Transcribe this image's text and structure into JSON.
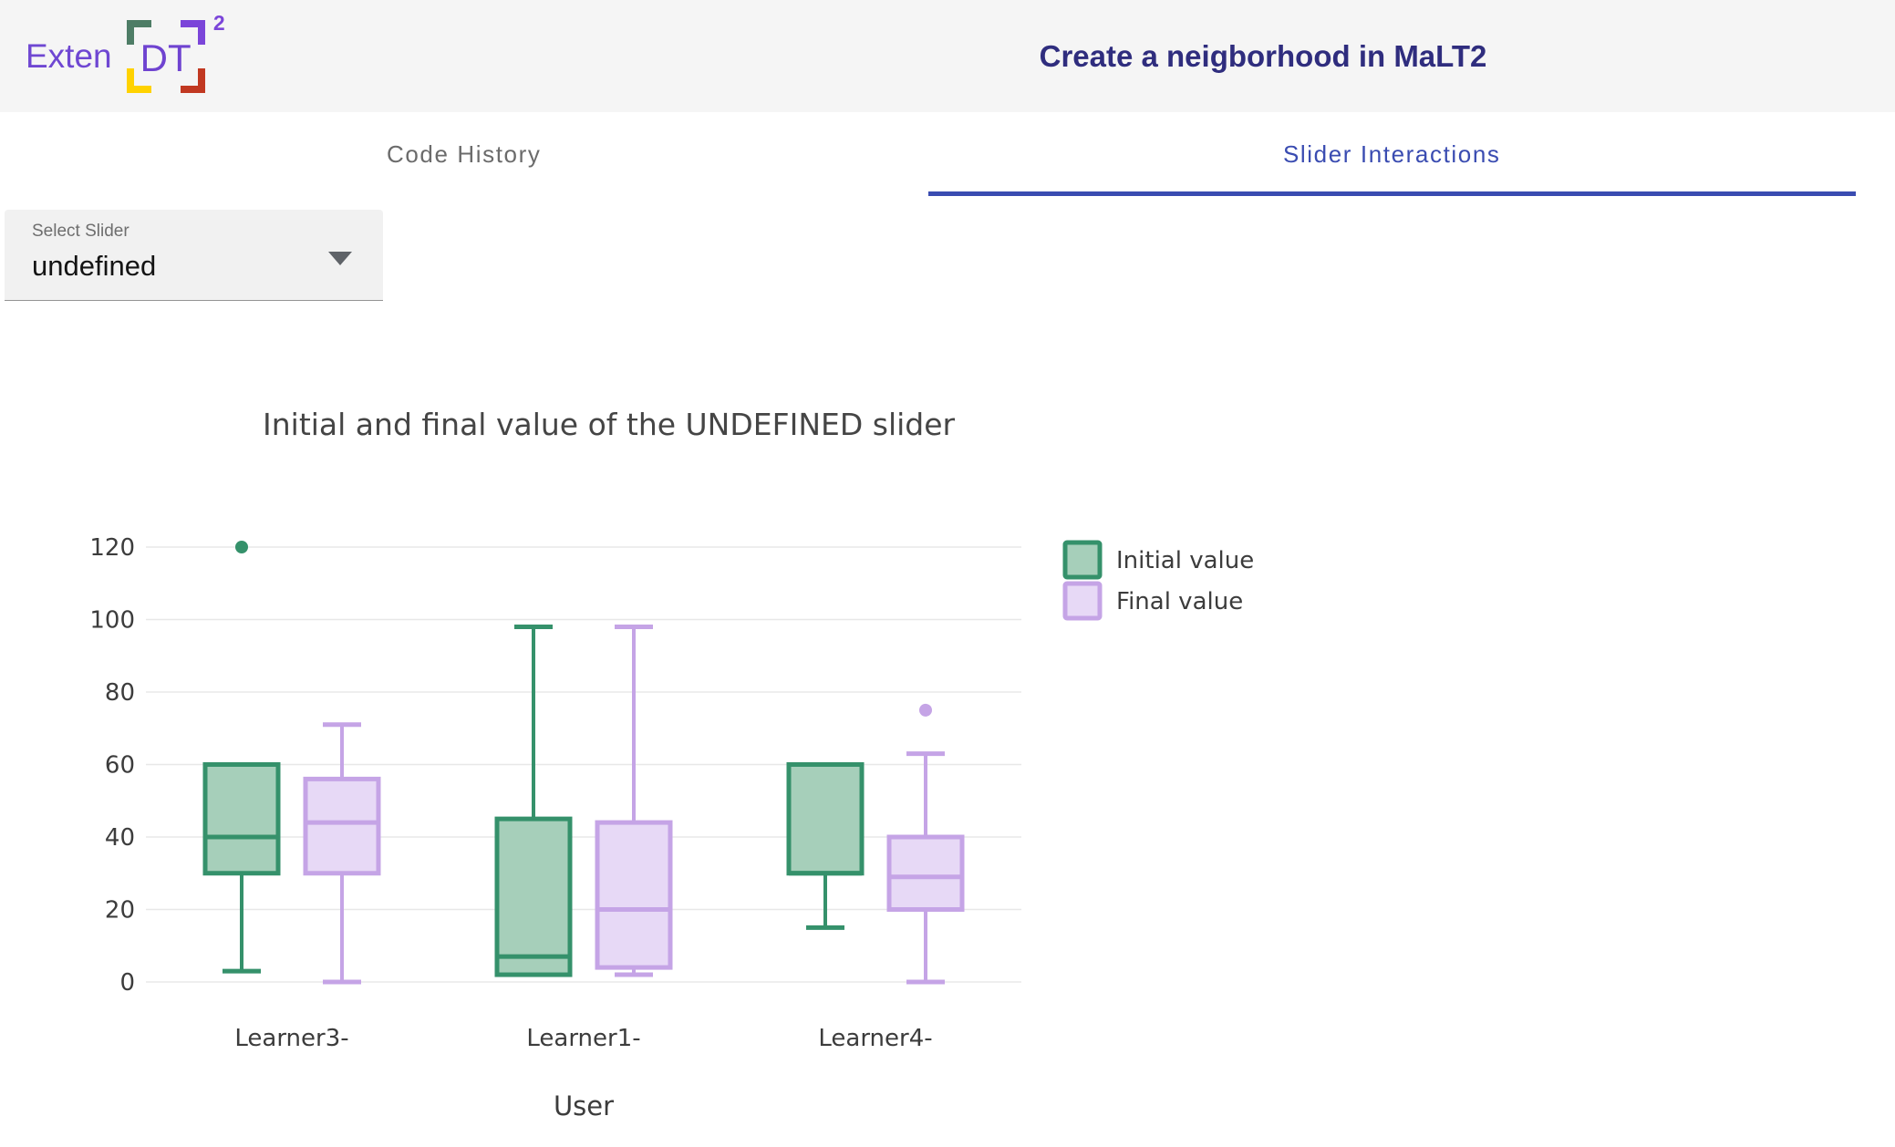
{
  "header": {
    "logo": {
      "text": "Exten",
      "dt": "DT",
      "sup": "2"
    },
    "title": "Create a neigborhood in MaLT2"
  },
  "tabs": [
    {
      "label": "Code History",
      "active": false
    },
    {
      "label": "Slider Interactions",
      "active": true
    }
  ],
  "slider_select": {
    "label": "Select Slider",
    "value": "undefined"
  },
  "colors": {
    "accent": "#3A4CB1",
    "header_bg": "#F5F5F5",
    "header_title_text": "#2F2D7E",
    "logo_purple": "#6F47D2",
    "logo_bracket_green": "#4E7D66",
    "logo_bracket_purple": "#7B45D9",
    "logo_bracket_yellow": "#FFD200",
    "logo_bracket_red": "#C13821",
    "grid_line": "#E8E8E8",
    "chart_text": "#3C3C3C"
  },
  "chart_data": {
    "type": "boxplot",
    "title": "Initial and final value of the UNDEFINED slider",
    "xlabel": "User",
    "ylabel": "",
    "categories": [
      "Learner3-",
      "Learner1-",
      "Learner4-"
    ],
    "ylim": [
      0,
      120
    ],
    "yticks": [
      0,
      20,
      40,
      60,
      80,
      100,
      120
    ],
    "grid": true,
    "legend_position": "right",
    "series": [
      {
        "name": "Initial value",
        "line_color": "#35916B",
        "fill_color": "#A6CFBA",
        "boxes": [
          {
            "category": "Learner3-",
            "min": 3,
            "q1": 30,
            "median": 40,
            "q3": 60,
            "max": 60,
            "outliers": [
              120
            ]
          },
          {
            "category": "Learner1-",
            "min": 2,
            "q1": 2,
            "median": 7,
            "q3": 45,
            "max": 98,
            "outliers": []
          },
          {
            "category": "Learner4-",
            "min": 15,
            "q1": 30,
            "median": 30,
            "q3": 60,
            "max": 60,
            "outliers": []
          }
        ]
      },
      {
        "name": "Final value",
        "line_color": "#C5A4E6",
        "fill_color": "#E7D9F6",
        "boxes": [
          {
            "category": "Learner3-",
            "min": 0,
            "q1": 30,
            "median": 44,
            "q3": 56,
            "max": 71,
            "outliers": []
          },
          {
            "category": "Learner1-",
            "min": 2,
            "q1": 4,
            "median": 20,
            "q3": 44,
            "max": 98,
            "outliers": []
          },
          {
            "category": "Learner4-",
            "min": 0,
            "q1": 20,
            "median": 29,
            "q3": 40,
            "max": 63,
            "outliers": [
              75
            ]
          }
        ]
      }
    ]
  }
}
